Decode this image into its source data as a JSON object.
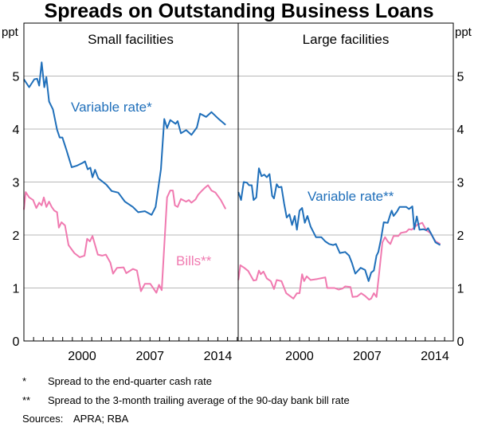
{
  "chart_data": {
    "type": "line",
    "title": "Spreads on Outstanding Business Loans",
    "unit_left": "ppt",
    "unit_right": "ppt",
    "ylim": [
      0,
      6
    ],
    "yticks": [
      0,
      1,
      2,
      3,
      4,
      5
    ],
    "xticks": [
      2000,
      2007,
      2014
    ],
    "grid": true,
    "colors": {
      "variable": "#1f6fba",
      "bills": "#f07ab0"
    },
    "panels": [
      {
        "title": "Small facilities",
        "xlim": [
          1994.0,
          2016.1
        ],
        "series": [
          {
            "name": "Variable rate*",
            "color": "#1f6fba",
            "points": [
              [
                1994.0,
                4.94
              ],
              [
                1994.54,
                4.79
              ],
              [
                1995.08,
                4.94
              ],
              [
                1995.36,
                4.95
              ],
              [
                1995.58,
                4.82
              ],
              [
                1995.83,
                5.26
              ],
              [
                1996.1,
                4.79
              ],
              [
                1996.32,
                4.98
              ],
              [
                1996.6,
                4.52
              ],
              [
                1997.0,
                4.37
              ],
              [
                1997.42,
                3.99
              ],
              [
                1997.69,
                3.84
              ],
              [
                1997.97,
                3.84
              ],
              [
                1998.38,
                3.61
              ],
              [
                1998.93,
                3.28
              ],
              [
                1999.48,
                3.31
              ],
              [
                2000.03,
                3.36
              ],
              [
                2000.3,
                3.39
              ],
              [
                2000.58,
                3.24
              ],
              [
                2000.85,
                3.27
              ],
              [
                2001.07,
                3.09
              ],
              [
                2001.34,
                3.23
              ],
              [
                2001.67,
                3.07
              ],
              [
                2002.5,
                2.95
              ],
              [
                2003.05,
                2.83
              ],
              [
                2003.73,
                2.8
              ],
              [
                2004.42,
                2.63
              ],
              [
                2005.24,
                2.53
              ],
              [
                2005.79,
                2.43
              ],
              [
                2006.48,
                2.45
              ],
              [
                2007.17,
                2.38
              ],
              [
                2007.58,
                2.53
              ],
              [
                2008.13,
                3.24
              ],
              [
                2008.48,
                4.19
              ],
              [
                2008.76,
                4.02
              ],
              [
                2009.09,
                4.17
              ],
              [
                2009.64,
                4.1
              ],
              [
                2009.86,
                4.15
              ],
              [
                2010.19,
                3.92
              ],
              [
                2010.73,
                3.98
              ],
              [
                2011.28,
                3.89
              ],
              [
                2011.84,
                4.03
              ],
              [
                2012.17,
                4.29
              ],
              [
                2012.79,
                4.23
              ],
              [
                2013.34,
                4.32
              ],
              [
                2014.03,
                4.2
              ],
              [
                2014.8,
                4.08
              ]
            ]
          },
          {
            "name": "Bills**",
            "color": "#f07ab0",
            "points": [
              [
                1994.0,
                2.48
              ],
              [
                1994.18,
                2.81
              ],
              [
                1994.54,
                2.71
              ],
              [
                1994.95,
                2.66
              ],
              [
                1995.28,
                2.51
              ],
              [
                1995.58,
                2.61
              ],
              [
                1995.83,
                2.56
              ],
              [
                1996.05,
                2.71
              ],
              [
                1996.32,
                2.53
              ],
              [
                1996.6,
                2.63
              ],
              [
                1996.87,
                2.53
              ],
              [
                1997.14,
                2.46
              ],
              [
                1997.42,
                2.43
              ],
              [
                1997.61,
                2.14
              ],
              [
                1997.88,
                2.24
              ],
              [
                1998.24,
                2.18
              ],
              [
                1998.6,
                1.81
              ],
              [
                1999.2,
                1.66
              ],
              [
                1999.75,
                1.58
              ],
              [
                2000.25,
                1.61
              ],
              [
                2000.52,
                1.93
              ],
              [
                2000.8,
                1.88
              ],
              [
                2001.07,
                1.98
              ],
              [
                2001.62,
                1.63
              ],
              [
                2002.08,
                1.61
              ],
              [
                2002.45,
                1.63
              ],
              [
                2002.91,
                1.48
              ],
              [
                2003.19,
                1.27
              ],
              [
                2003.6,
                1.38
              ],
              [
                2004.28,
                1.39
              ],
              [
                2004.56,
                1.28
              ],
              [
                2005.24,
                1.36
              ],
              [
                2005.66,
                1.33
              ],
              [
                2006.07,
                0.94
              ],
              [
                2006.48,
                1.08
              ],
              [
                2007.03,
                1.08
              ],
              [
                2007.66,
                0.91
              ],
              [
                2007.93,
                1.06
              ],
              [
                2008.21,
                0.96
              ],
              [
                2008.76,
                2.71
              ],
              [
                2009.09,
                2.84
              ],
              [
                2009.36,
                2.84
              ],
              [
                2009.58,
                2.56
              ],
              [
                2009.86,
                2.53
              ],
              [
                2010.19,
                2.68
              ],
              [
                2010.73,
                2.63
              ],
              [
                2011.01,
                2.66
              ],
              [
                2011.28,
                2.61
              ],
              [
                2011.7,
                2.67
              ],
              [
                2011.97,
                2.76
              ],
              [
                2012.38,
                2.84
              ],
              [
                2012.66,
                2.89
              ],
              [
                2012.99,
                2.94
              ],
              [
                2013.34,
                2.84
              ],
              [
                2013.76,
                2.8
              ],
              [
                2014.31,
                2.66
              ],
              [
                2014.8,
                2.49
              ]
            ]
          }
        ]
      },
      {
        "title": "Large facilities",
        "xlim": [
          1993.66,
          2015.9
        ],
        "series": [
          {
            "name": "Variable rate**",
            "color": "#1f6fba",
            "points": [
              [
                1993.68,
                2.81
              ],
              [
                1993.96,
                2.66
              ],
              [
                1994.23,
                3.0
              ],
              [
                1994.56,
                2.99
              ],
              [
                1994.78,
                2.94
              ],
              [
                1995.06,
                2.94
              ],
              [
                1995.25,
                2.66
              ],
              [
                1995.53,
                2.71
              ],
              [
                1995.8,
                3.26
              ],
              [
                1996.07,
                3.11
              ],
              [
                1996.35,
                3.14
              ],
              [
                1996.62,
                3.09
              ],
              [
                1996.9,
                3.15
              ],
              [
                1997.17,
                2.74
              ],
              [
                1997.36,
                2.69
              ],
              [
                1997.64,
                2.96
              ],
              [
                1997.86,
                2.9
              ],
              [
                1998.13,
                2.91
              ],
              [
                1998.41,
                2.59
              ],
              [
                1998.68,
                2.33
              ],
              [
                1998.96,
                2.39
              ],
              [
                1999.23,
                2.19
              ],
              [
                1999.51,
                2.36
              ],
              [
                1999.73,
                2.1
              ],
              [
                2000.0,
                2.46
              ],
              [
                2000.27,
                2.51
              ],
              [
                2000.55,
                2.23
              ],
              [
                2000.82,
                2.36
              ],
              [
                2001.15,
                2.16
              ],
              [
                2001.7,
                1.96
              ],
              [
                2002.25,
                1.96
              ],
              [
                2002.66,
                1.88
              ],
              [
                2003.07,
                1.83
              ],
              [
                2003.49,
                1.81
              ],
              [
                2003.76,
                1.83
              ],
              [
                2004.17,
                1.66
              ],
              [
                2004.72,
                1.68
              ],
              [
                2005.13,
                1.61
              ],
              [
                2005.41,
                1.48
              ],
              [
                2005.77,
                1.27
              ],
              [
                2006.32,
                1.38
              ],
              [
                2006.78,
                1.34
              ],
              [
                2007.14,
                1.13
              ],
              [
                2007.41,
                1.29
              ],
              [
                2007.69,
                1.33
              ],
              [
                2007.96,
                1.61
              ],
              [
                2008.15,
                1.68
              ],
              [
                2008.43,
                1.93
              ],
              [
                2008.71,
                2.24
              ],
              [
                2009.12,
                2.23
              ],
              [
                2009.39,
                2.39
              ],
              [
                2009.53,
                2.46
              ],
              [
                2009.72,
                2.36
              ],
              [
                2010.07,
                2.44
              ],
              [
                2010.35,
                2.53
              ],
              [
                2011.04,
                2.53
              ],
              [
                2011.31,
                2.49
              ],
              [
                2011.67,
                2.54
              ],
              [
                2011.86,
                2.11
              ],
              [
                2012.13,
                2.35
              ],
              [
                2012.41,
                2.1
              ],
              [
                2012.82,
                2.11
              ],
              [
                2013.1,
                2.09
              ],
              [
                2013.29,
                2.13
              ],
              [
                2013.65,
                2.01
              ],
              [
                2014.06,
                1.86
              ],
              [
                2014.55,
                1.81
              ]
            ]
          },
          {
            "name": "",
            "color": "#f07ab0",
            "points": [
              [
                1993.68,
                1.15
              ],
              [
                1993.88,
                1.43
              ],
              [
                1994.29,
                1.38
              ],
              [
                1994.7,
                1.32
              ],
              [
                1995.25,
                1.14
              ],
              [
                1995.53,
                1.15
              ],
              [
                1995.8,
                1.33
              ],
              [
                1995.99,
                1.26
              ],
              [
                1996.27,
                1.31
              ],
              [
                1996.62,
                1.18
              ],
              [
                1997.03,
                1.13
              ],
              [
                1997.36,
                0.98
              ],
              [
                1997.64,
                1.15
              ],
              [
                1998.13,
                1.13
              ],
              [
                1998.63,
                0.9
              ],
              [
                1999.37,
                0.8
              ],
              [
                1999.73,
                0.9
              ],
              [
                2000.0,
                0.9
              ],
              [
                2000.27,
                1.26
              ],
              [
                2000.47,
                1.13
              ],
              [
                2000.74,
                1.22
              ],
              [
                2001.15,
                1.15
              ],
              [
                2001.84,
                1.17
              ],
              [
                2002.39,
                1.19
              ],
              [
                2002.66,
                1.2
              ],
              [
                2002.86,
                1.0
              ],
              [
                2003.62,
                1.0
              ],
              [
                2004.04,
                0.97
              ],
              [
                2004.45,
                0.99
              ],
              [
                2004.72,
                1.03
              ],
              [
                2005.27,
                1.02
              ],
              [
                2005.49,
                0.83
              ],
              [
                2005.96,
                0.84
              ],
              [
                2006.37,
                0.9
              ],
              [
                2006.78,
                0.85
              ],
              [
                2007.19,
                0.78
              ],
              [
                2007.41,
                0.8
              ],
              [
                2007.69,
                0.9
              ],
              [
                2007.96,
                0.83
              ],
              [
                2008.24,
                1.29
              ],
              [
                2008.57,
                1.86
              ],
              [
                2008.84,
                1.96
              ],
              [
                2009.12,
                1.88
              ],
              [
                2009.39,
                1.83
              ],
              [
                2009.72,
                1.98
              ],
              [
                2010.21,
                1.98
              ],
              [
                2010.49,
                2.04
              ],
              [
                2011.04,
                2.06
              ],
              [
                2011.31,
                2.11
              ],
              [
                2011.59,
                2.1
              ],
              [
                2011.86,
                2.14
              ],
              [
                2012.13,
                2.19
              ],
              [
                2012.69,
                2.23
              ],
              [
                2013.1,
                2.09
              ],
              [
                2013.51,
                2.04
              ],
              [
                2014.06,
                1.88
              ],
              [
                2014.55,
                1.83
              ]
            ]
          }
        ]
      }
    ],
    "annotations": [
      "Variable rate*",
      "Bills**",
      "Variable rate**"
    ]
  },
  "footnotes": [
    {
      "mark": "*",
      "text": "Spread to the end-quarter cash rate"
    },
    {
      "mark": "**",
      "text": "Spread to the 3-month trailing average of the 90-day bank bill rate"
    }
  ],
  "sources": {
    "label": "Sources:",
    "text": "APRA; RBA"
  }
}
